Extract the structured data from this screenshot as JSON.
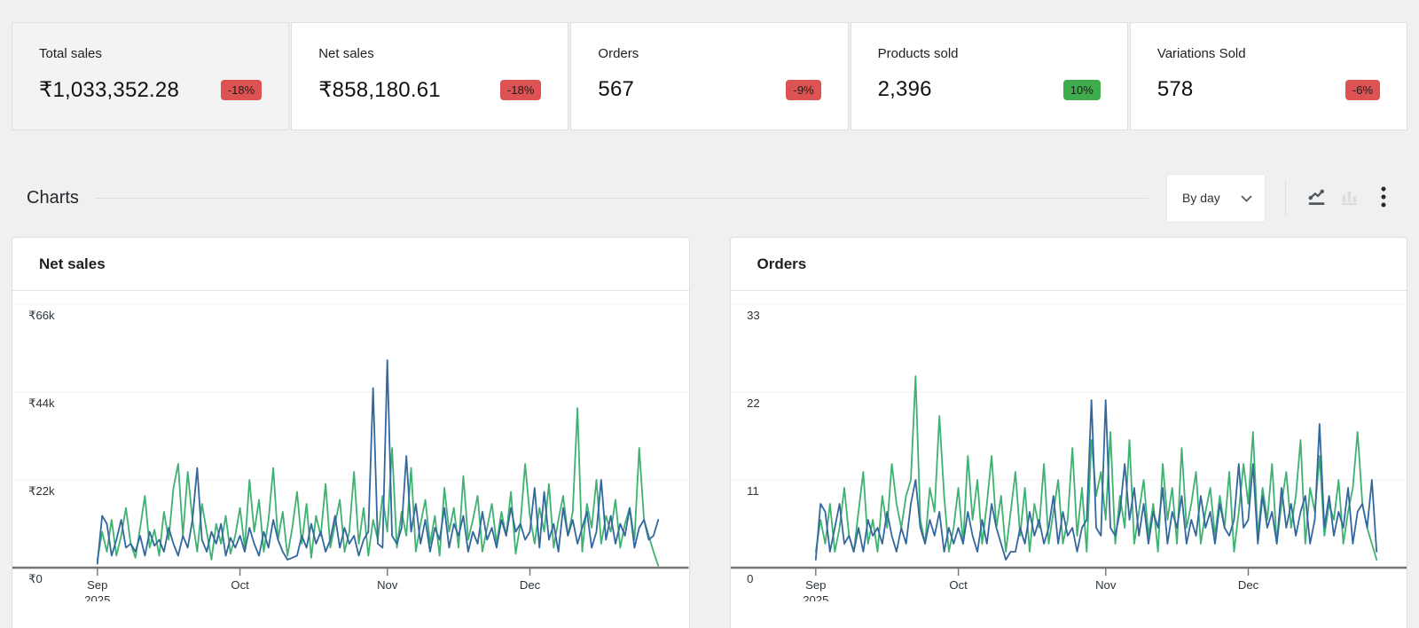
{
  "summary_cards": [
    {
      "label": "Total sales",
      "value": "₹1,033,352.28",
      "delta": "-18%",
      "delta_direction": "down",
      "selected": true
    },
    {
      "label": "Net sales",
      "value": "₹858,180.61",
      "delta": "-18%",
      "delta_direction": "down",
      "selected": false
    },
    {
      "label": "Orders",
      "value": "567",
      "delta": "-9%",
      "delta_direction": "down",
      "selected": false
    },
    {
      "label": "Products sold",
      "value": "2,396",
      "delta": "10%",
      "delta_direction": "up",
      "selected": false
    },
    {
      "label": "Variations Sold",
      "value": "578",
      "delta": "-6%",
      "delta_direction": "down",
      "selected": false
    }
  ],
  "charts_section": {
    "title": "Charts",
    "interval_select": {
      "value": "By day"
    },
    "chart_type_toggle": {
      "line_active": true,
      "bar_active": false
    }
  },
  "colors": {
    "badge_down": "#dd5353",
    "badge_up": "#3fac4e",
    "line_green": "#3fb272",
    "line_blue": "#33689e",
    "axis": "#757575",
    "gridline": "#f0f0f0"
  },
  "chart_data": [
    {
      "type": "line",
      "title": "Net sales",
      "interval": "day",
      "x_range": "Sep 1 2025 – Dec 28 2025",
      "x_ticks": [
        {
          "label": "Sep",
          "sublabel": "2025",
          "day": 0
        },
        {
          "label": "Oct",
          "sublabel": "",
          "day": 30
        },
        {
          "label": "Nov",
          "sublabel": "",
          "day": 61
        },
        {
          "label": "Dec",
          "sublabel": "",
          "day": 91
        }
      ],
      "y_ticks": [
        {
          "label": "₹66k",
          "value": 66000
        },
        {
          "label": "₹44k",
          "value": 44000
        },
        {
          "label": "₹22k",
          "value": 22000
        },
        {
          "label": "₹0",
          "value": 0
        }
      ],
      "ylim": [
        0,
        66000
      ],
      "series": [
        {
          "name": "green",
          "color": "#3fb272",
          "values": [
            2000,
            9000,
            4000,
            12000,
            3000,
            8000,
            15000,
            6000,
            2500,
            10000,
            18000,
            5000,
            9500,
            3000,
            14000,
            7000,
            20000,
            26000,
            8000,
            24000,
            12000,
            4000,
            16000,
            9000,
            2000,
            11000,
            6000,
            13000,
            3500,
            8000,
            15000,
            5000,
            22000,
            9000,
            17000,
            4000,
            12000,
            25000,
            7000,
            14000,
            3000,
            10000,
            19000,
            6000,
            16000,
            2500,
            13000,
            8000,
            21000,
            5000,
            11000,
            17000,
            4000,
            9000,
            24000,
            6000,
            15000,
            3000,
            12000,
            7000,
            18000,
            9000,
            30000,
            5000,
            14000,
            8000,
            25000,
            4000,
            11000,
            17000,
            6000,
            13000,
            3000,
            20000,
            9000,
            15000,
            5000,
            23000,
            7000,
            12000,
            18000,
            4000,
            10000,
            16000,
            6000,
            14000,
            8000,
            19000,
            3500,
            11000,
            26000,
            13000,
            6000,
            15000,
            9000,
            21000,
            5000,
            12000,
            18000,
            8000,
            14000,
            40000,
            4000,
            16000,
            10000,
            22000,
            6000,
            13000,
            9000,
            17000,
            5000,
            11000,
            15000,
            7000,
            30000,
            12000,
            8000,
            4000,
            500
          ]
        },
        {
          "name": "blue",
          "color": "#33689e",
          "values": [
            1000,
            13000,
            11000,
            3000,
            7000,
            12000,
            5000,
            6000,
            4000,
            8000,
            3000,
            9000,
            5500,
            7000,
            4000,
            10000,
            6000,
            3000,
            8000,
            5000,
            12000,
            25000,
            7000,
            4000,
            9000,
            6000,
            11000,
            3000,
            7500,
            5000,
            8000,
            4000,
            10000,
            6000,
            3000,
            9000,
            5000,
            12000,
            7000,
            4000,
            2000,
            2500,
            3000,
            8000,
            5000,
            11000,
            6000,
            9000,
            4000,
            7000,
            13000,
            5000,
            10000,
            6000,
            8000,
            3000,
            7000,
            9000,
            45000,
            6000,
            5000,
            52000,
            8000,
            6000,
            10000,
            28000,
            9000,
            16000,
            6000,
            12000,
            4000,
            10000,
            7000,
            15000,
            5000,
            11000,
            8000,
            13000,
            4000,
            9000,
            6000,
            14000,
            7000,
            10000,
            5000,
            12000,
            8000,
            15000,
            9000,
            11000,
            7000,
            9000,
            20000,
            5000,
            19000,
            7000,
            11000,
            4000,
            15000,
            8000,
            12000,
            6000,
            10000,
            14000,
            5000,
            9000,
            22000,
            7000,
            13000,
            6000,
            11000,
            8000,
            15000,
            5000,
            10000,
            12000,
            7000,
            8000,
            12000
          ]
        }
      ]
    },
    {
      "type": "line",
      "title": "Orders",
      "interval": "day",
      "x_range": "Sep 1 2025 – Dec 28 2025",
      "x_ticks": [
        {
          "label": "Sep",
          "sublabel": "2025",
          "day": 0
        },
        {
          "label": "Oct",
          "sublabel": "",
          "day": 30
        },
        {
          "label": "Nov",
          "sublabel": "",
          "day": 61
        },
        {
          "label": "Dec",
          "sublabel": "",
          "day": 91
        }
      ],
      "y_ticks": [
        {
          "label": "33",
          "value": 33
        },
        {
          "label": "22",
          "value": 22
        },
        {
          "label": "11",
          "value": 11
        },
        {
          "label": "0",
          "value": 0
        }
      ],
      "ylim": [
        0,
        33
      ],
      "series": [
        {
          "name": "green",
          "color": "#3fb272",
          "values": [
            2,
            6,
            3,
            8,
            2,
            5,
            10,
            4,
            2,
            7,
            12,
            3,
            6,
            2,
            9,
            5,
            13,
            8,
            5,
            9,
            11,
            24,
            6,
            3,
            10,
            7,
            19,
            9,
            2,
            5,
            10,
            3,
            14,
            6,
            11,
            3,
            8,
            14,
            5,
            9,
            2,
            7,
            12,
            4,
            10,
            2,
            8,
            5,
            13,
            3,
            7,
            11,
            3,
            6,
            15,
            4,
            10,
            2,
            16,
            9,
            12,
            6,
            17,
            3,
            9,
            5,
            16,
            3,
            7,
            11,
            4,
            8,
            2,
            13,
            6,
            10,
            3,
            15,
            5,
            8,
            12,
            3,
            7,
            10,
            4,
            9,
            5,
            12,
            2,
            7,
            13,
            8,
            17,
            4,
            10,
            6,
            13,
            3,
            8,
            12,
            5,
            9,
            16,
            3,
            10,
            7,
            14,
            4,
            8,
            6,
            11,
            3,
            7,
            10,
            17,
            8,
            5,
            3,
            1
          ]
        },
        {
          "name": "blue",
          "color": "#33689e",
          "values": [
            1,
            8,
            7,
            2,
            5,
            8,
            3,
            4,
            2,
            5,
            2,
            6,
            4,
            5,
            3,
            7,
            4,
            2,
            5,
            3,
            8,
            11,
            5,
            3,
            6,
            4,
            7,
            2,
            5,
            3,
            5,
            3,
            7,
            4,
            2,
            6,
            3,
            8,
            5,
            3,
            1,
            2,
            2,
            5,
            3,
            7,
            4,
            6,
            3,
            5,
            9,
            3,
            7,
            4,
            5,
            2,
            5,
            6,
            21,
            5,
            4,
            21,
            5,
            4,
            7,
            13,
            6,
            10,
            4,
            8,
            3,
            7,
            5,
            10,
            3,
            7,
            5,
            9,
            3,
            6,
            4,
            9,
            5,
            7,
            3,
            8,
            5,
            4,
            6,
            13,
            5,
            6,
            13,
            3,
            9,
            5,
            7,
            3,
            10,
            5,
            8,
            4,
            7,
            9,
            3,
            6,
            18,
            5,
            9,
            4,
            7,
            5,
            10,
            3,
            7,
            8,
            5,
            11,
            2
          ]
        }
      ]
    }
  ]
}
